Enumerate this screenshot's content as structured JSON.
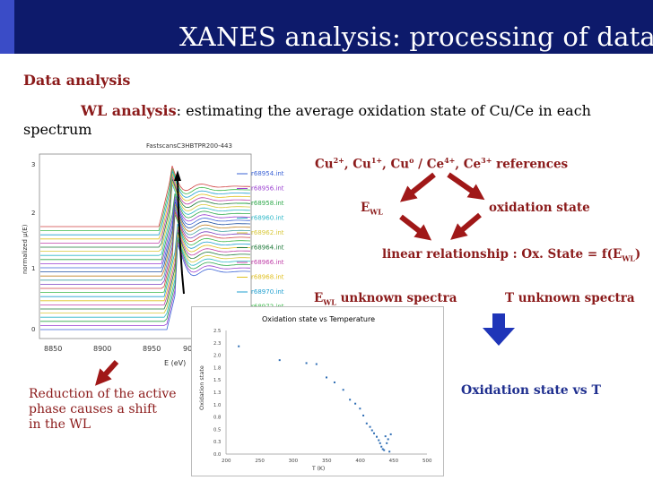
{
  "slide": {
    "title": "XANES analysis: processing of data",
    "section_heading": "Data analysis",
    "wl_term": "WL analysis",
    "wl_description": ": estimating the average oxidation state of Cu/Ce in each spectrum"
  },
  "flow": {
    "references": {
      "cu2": "Cu",
      "cu2_sup": "2+",
      "cu1": "Cu",
      "cu1_sup": "1+",
      "cu0": "Cu",
      "cu0_sup": "o",
      "sep": "/",
      "ce4": "Ce",
      "ce4_sup": "4+",
      "ce3": "Ce",
      "ce3_sup": "3+",
      "suffix": "references"
    },
    "ewl_main": "E",
    "ewl_sub": "WL",
    "oxidation_state": "oxidation state",
    "linear_relationship_prefix": "linear relationship : Ox. State = f(E",
    "linear_relationship_sub": "WL",
    "linear_relationship_suffix": ")",
    "ewl_unknown_main": "E",
    "ewl_unknown_sub": "WL",
    "ewl_unknown_suffix": "unknown spectra",
    "t_unknown": "T unknown spectra",
    "result": "Oxidation state vs T"
  },
  "note": {
    "line1": "Reduction of the active",
    "line2": "phase causes a shift",
    "line3": "in the WL"
  },
  "colors": {
    "title_bg": "#0d1a6b",
    "dark_red": "#8b1a1a",
    "blue": "#1f2f8f",
    "arrow_red": "#a01818",
    "arrow_blue": "#1f35b8",
    "scatter_point": "#2e6db4"
  },
  "xanes_chart": {
    "type": "line",
    "title": "FastscansC3HBTPR200-443",
    "xlabel": "E (eV)",
    "ylabel": "normalized μ(E)",
    "x_ticks": [
      "8850",
      "8900",
      "8950",
      "900"
    ],
    "y_ticks": [
      "0",
      "1",
      "2",
      "3"
    ],
    "legend": [
      "r68954.int",
      "r68956.int",
      "r68958.int",
      "r68960.int",
      "r68962.int",
      "r68964.int",
      "r68966.int",
      "r68968.int",
      "r68970.int",
      "r68972.int"
    ],
    "legend_colors": [
      "#3b63d6",
      "#9a3fd0",
      "#2ea84a",
      "#2fb8c8",
      "#d8c83a",
      "#1f7a3a",
      "#c040a8",
      "#e0c020",
      "#1f9fd0",
      "#3cb84a"
    ]
  },
  "chart_data": {
    "type": "scatter",
    "title": "Oxidation state vs Temperature",
    "xlabel": "T (K)",
    "ylabel": "Oxidation state",
    "xlim": [
      200,
      500
    ],
    "ylim": [
      0,
      2.5
    ],
    "x_ticks": [
      "200",
      "250",
      "300",
      "350",
      "400",
      "450",
      "500"
    ],
    "y_ticks": [
      "0.0",
      "0.3",
      "0.5",
      "0.8",
      "1.0",
      "1.3",
      "1.5",
      "1.8",
      "2.0",
      "2.3",
      "2.5"
    ],
    "x": [
      219,
      280,
      320,
      335,
      350,
      362,
      375,
      385,
      393,
      400,
      405,
      410,
      415,
      418,
      421,
      425,
      428,
      430,
      432,
      434,
      436,
      438,
      440,
      442,
      444,
      446
    ],
    "y": [
      2.18,
      1.9,
      1.84,
      1.82,
      1.55,
      1.45,
      1.3,
      1.1,
      1.02,
      0.92,
      0.78,
      0.62,
      0.55,
      0.48,
      0.42,
      0.35,
      0.28,
      0.22,
      0.15,
      0.1,
      0.08,
      0.36,
      0.22,
      0.3,
      0.05,
      0.4
    ]
  }
}
